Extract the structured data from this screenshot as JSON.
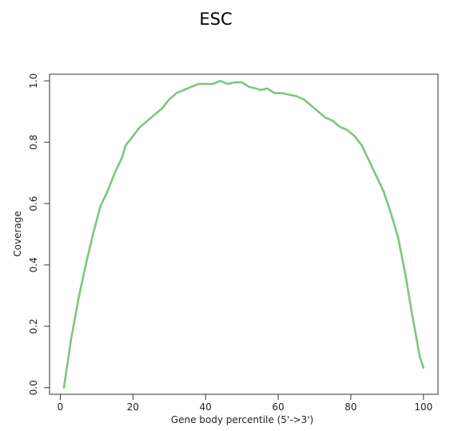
{
  "chart_data": {
    "type": "line",
    "title": "ESC",
    "xlabel": "Gene body percentile (5'->3')",
    "ylabel": "Coverage",
    "xlim": [
      -2.96,
      104.0
    ],
    "ylim": [
      -0.0216,
      1.0216
    ],
    "xticks": [
      0,
      20,
      40,
      60,
      80,
      100
    ],
    "yticks": [
      0.0,
      0.2,
      0.4,
      0.6,
      0.8,
      1.0
    ],
    "xtick_labels": [
      "0",
      "20",
      "40",
      "60",
      "80",
      "100"
    ],
    "ytick_labels": [
      "0.0",
      "0.2",
      "0.4",
      "0.6",
      "0.8",
      "1.0"
    ],
    "grid": false,
    "legend": "none",
    "series": [
      {
        "color": "#7bc87b",
        "x": [
          1,
          3,
          5,
          7,
          9,
          11,
          13,
          15,
          17,
          18,
          20,
          22,
          24,
          26,
          28,
          30,
          32,
          34,
          36,
          38,
          40,
          42,
          44,
          45,
          46,
          48,
          50,
          52,
          54,
          55,
          57,
          59,
          61,
          63,
          65,
          67,
          69,
          71,
          73,
          75,
          77,
          79,
          81,
          83,
          85,
          87,
          89,
          91,
          93,
          95,
          97,
          99,
          100
        ],
        "y": [
          0.0,
          0.16,
          0.29,
          0.4,
          0.5,
          0.59,
          0.64,
          0.7,
          0.75,
          0.79,
          0.82,
          0.85,
          0.87,
          0.89,
          0.91,
          0.94,
          0.96,
          0.97,
          0.98,
          0.99,
          0.99,
          0.99,
          1.0,
          0.995,
          0.99,
          0.995,
          0.995,
          0.98,
          0.975,
          0.97,
          0.975,
          0.96,
          0.96,
          0.955,
          0.95,
          0.94,
          0.92,
          0.9,
          0.88,
          0.87,
          0.85,
          0.84,
          0.82,
          0.79,
          0.74,
          0.69,
          0.64,
          0.57,
          0.49,
          0.37,
          0.23,
          0.1,
          0.065
        ]
      }
    ]
  }
}
